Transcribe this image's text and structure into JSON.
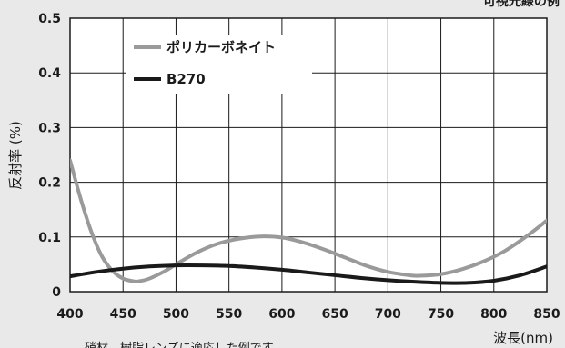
{
  "header_text": "可視光線の例",
  "footnote": "硝材、樹脂レンズに適応した例です。",
  "chart_data": {
    "type": "line",
    "title": "",
    "xlabel": "波長(nm)",
    "ylabel": "反射率 (%)",
    "xlim": [
      400,
      850
    ],
    "ylim": [
      0,
      0.5
    ],
    "x_ticks": [
      "400",
      "450",
      "500",
      "550",
      "600",
      "650",
      "700",
      "750",
      "800",
      "850"
    ],
    "y_ticks": [
      "0",
      "0.1",
      "0.2",
      "0.3",
      "0.4",
      "0.5"
    ],
    "grid": true,
    "legend_position": "top-left",
    "series": [
      {
        "name": "ポリカーボネイト",
        "color": "#9a9a9a",
        "x": [
          400,
          410,
          420,
          430,
          440,
          450,
          460,
          465,
          475,
          490,
          500,
          520,
          540,
          560,
          580,
          600,
          620,
          640,
          660,
          680,
          700,
          720,
          730,
          750,
          770,
          790,
          810,
          830,
          850
        ],
        "y": [
          0.24,
          0.17,
          0.11,
          0.065,
          0.038,
          0.024,
          0.019,
          0.019,
          0.024,
          0.038,
          0.05,
          0.072,
          0.088,
          0.097,
          0.101,
          0.099,
          0.09,
          0.077,
          0.062,
          0.047,
          0.036,
          0.03,
          0.029,
          0.032,
          0.041,
          0.055,
          0.074,
          0.1,
          0.13
        ]
      },
      {
        "name": "B270",
        "color": "#1a1a1a",
        "x": [
          400,
          425,
          450,
          475,
          500,
          525,
          550,
          575,
          600,
          625,
          650,
          675,
          700,
          725,
          750,
          775,
          800,
          825,
          850
        ],
        "y": [
          0.028,
          0.036,
          0.042,
          0.046,
          0.048,
          0.048,
          0.047,
          0.044,
          0.04,
          0.035,
          0.03,
          0.025,
          0.021,
          0.018,
          0.016,
          0.016,
          0.02,
          0.03,
          0.046
        ]
      }
    ]
  }
}
